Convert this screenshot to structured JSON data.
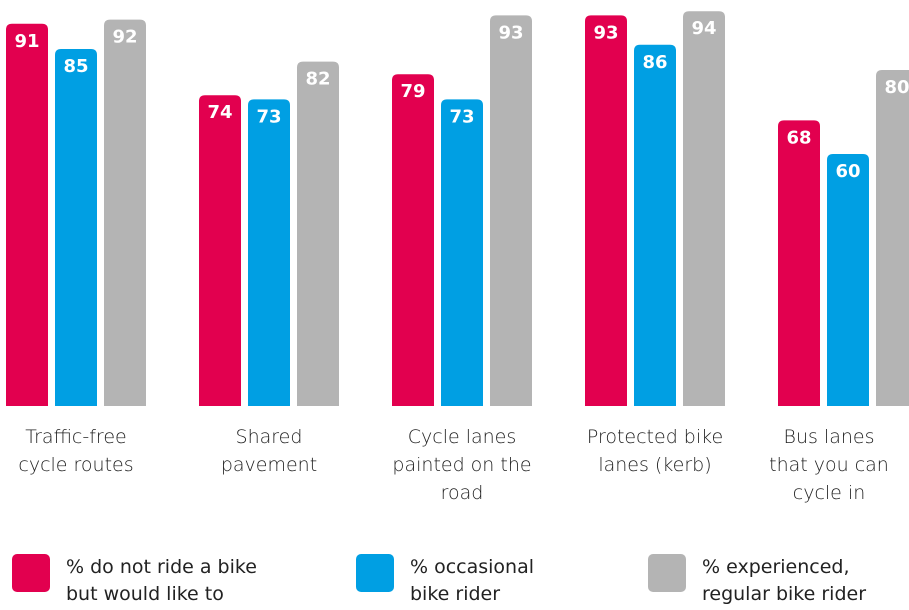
{
  "chart_data": {
    "type": "bar",
    "categories": [
      "Traffic-free cycle routes",
      "Shared pavement",
      "Cycle lanes painted on the road",
      "Protected bike lanes (kerb)",
      "Bus lanes that you can cycle in"
    ],
    "category_label_lines": [
      [
        "Traffic-free",
        "cycle routes"
      ],
      [
        "Shared",
        "pavement"
      ],
      [
        "Cycle lanes",
        "painted on the",
        "road"
      ],
      [
        "Protected bike",
        "lanes (kerb)"
      ],
      [
        "Bus lanes",
        "that you can",
        "cycle in"
      ]
    ],
    "series": [
      {
        "name": "% do not ride a bike but would like to",
        "values": [
          91,
          74,
          79,
          93,
          68
        ],
        "color": "#e2004f"
      },
      {
        "name": "% occasional bike rider",
        "values": [
          85,
          73,
          73,
          86,
          60
        ],
        "color": "#009fe3"
      },
      {
        "name": "% experienced, regular bike rider",
        "values": [
          92,
          82,
          93,
          94,
          80
        ],
        "color": "#b4b4b4"
      }
    ],
    "legend": [
      {
        "lines": [
          "% do not ride a bike",
          "but would like to"
        ],
        "color": "#e2004f"
      },
      {
        "lines": [
          "% occasional",
          "bike rider"
        ],
        "color": "#009fe3"
      },
      {
        "lines": [
          "% experienced,",
          "regular bike rider"
        ],
        "color": "#b4b4b4"
      }
    ],
    "legend_position": "bottom",
    "data_labels": true,
    "grid": false,
    "ylim": [
      0,
      100
    ]
  }
}
